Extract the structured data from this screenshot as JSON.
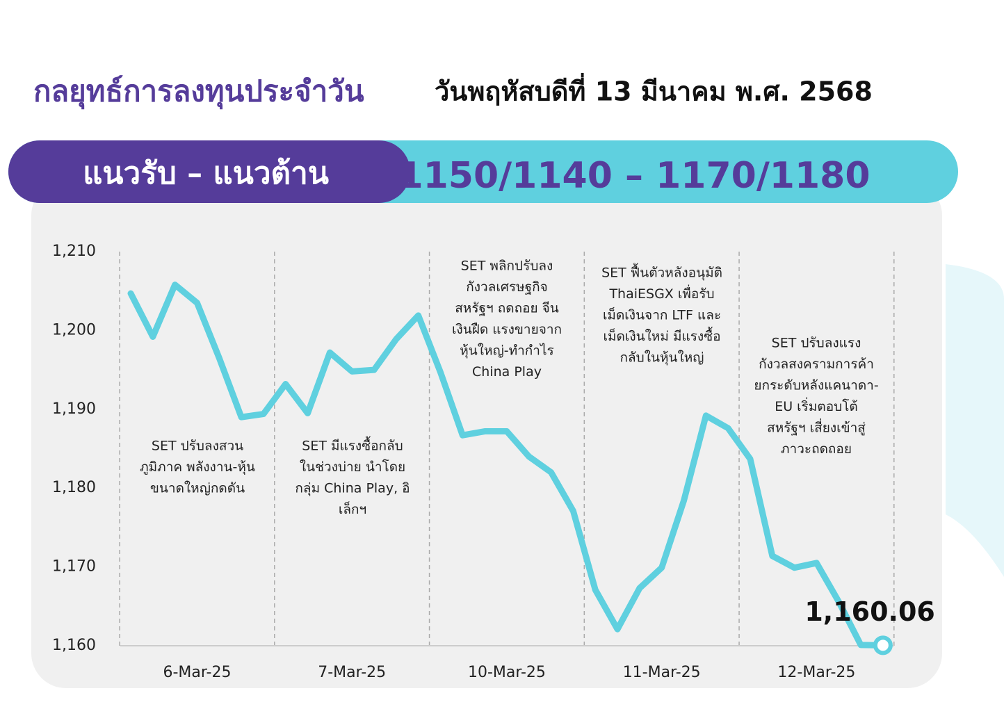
{
  "header": {
    "title": "กลยุทธ์การลงทุนประจำวัน",
    "date": "วันพฤหัสบดีที่ 13 มีนาคม พ.ศ. 2568"
  },
  "banner": {
    "label": "แนวรับ – แนวต้าน",
    "range": "1150/1140 – 1170/1180"
  },
  "chart_data": {
    "type": "line",
    "categories": [
      null,
      null,
      null,
      "6-Mar-25",
      null,
      null,
      null,
      null,
      null,
      null,
      "7-Mar-25",
      null,
      null,
      null,
      null,
      null,
      null,
      "10-Mar-25",
      null,
      null,
      null,
      null,
      null,
      null,
      "11-Mar-25",
      null,
      null,
      null,
      null,
      null,
      null,
      "12-Mar-25",
      null,
      null,
      null
    ],
    "series": [
      {
        "color": "#5fd0df",
        "values": [
          1204.7,
          1199.2,
          1205.8,
          1203.5,
          1196.5,
          1189.0,
          1189.4,
          1193.2,
          1189.5,
          1197.2,
          1194.8,
          1195.0,
          1198.9,
          1201.9,
          1194.7,
          1186.7,
          1187.2,
          1187.2,
          1184.0,
          1182.0,
          1177.1,
          1167.1,
          1162.1,
          1167.3,
          1169.9,
          1178.4,
          1189.2,
          1187.6,
          1183.7,
          1171.4,
          1169.9,
          1170.5,
          1165.6,
          1160.1,
          1160.06
        ],
        "value_labels": [
          null,
          null,
          null,
          null,
          null,
          null,
          null,
          null,
          null,
          null,
          null,
          null,
          null,
          null,
          null,
          null,
          null,
          null,
          null,
          null,
          null,
          null,
          null,
          null,
          null,
          null,
          null,
          null,
          null,
          null,
          null,
          null,
          null,
          null,
          "1,160.06"
        ]
      }
    ],
    "ylim": [
      1160,
      1210
    ],
    "yticks": [
      {
        "value": 1160,
        "label": "1,160"
      },
      {
        "value": 1170,
        "label": "1,170"
      },
      {
        "value": 1180,
        "label": "1,180"
      },
      {
        "value": 1190,
        "label": "1,190"
      },
      {
        "value": 1200,
        "label": "1,200"
      },
      {
        "value": 1210,
        "label": "1,210"
      }
    ],
    "annotations": [
      [
        "SET ปรับลงสวน",
        "ภูมิภาค พลังงาน-หุ้น",
        "ขนาดใหญ่กดดัน"
      ],
      [
        "SET มีแรงซื้อกลับ",
        "ในช่วงบ่าย นำโดย",
        "กลุ่ม China Play, อิ",
        "เล็กฯ"
      ],
      [
        "SET พลิกปรับลง",
        "กังวลเศรษฐกิจ",
        "สหรัฐฯ ถดถอย จีน",
        "เงินฝืด แรงขายจาก",
        "หุ้นใหญ่-ทำกำไร",
        "China Play"
      ],
      [
        "SET ฟื้นตัวหลังอนุมัติ",
        "ThaiESGX เพื่อรับ",
        "เม็ดเงินจาก LTF และ",
        "เม็ดเงินใหม่ มีแรงซื้อ",
        "กลับในหุ้นใหญ่"
      ],
      [
        "SET ปรับลงแรง",
        "กังวลสงครามการค้า",
        "ยกระดับหลังแคนาดา-",
        "EU เริ่มตอบโต้",
        "สหรัฐฯ เสี่ยงเข้าสู่",
        "ภาวะถดถอย"
      ]
    ]
  }
}
